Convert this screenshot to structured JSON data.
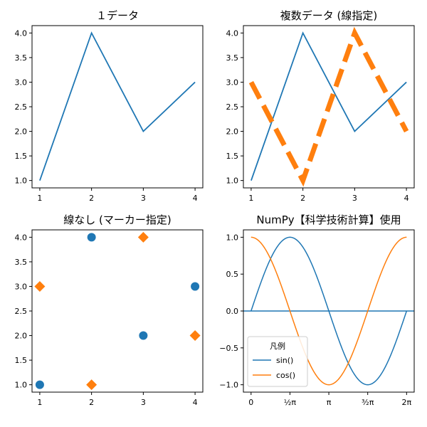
{
  "chart_data": [
    {
      "type": "line",
      "title": "１データ",
      "xticks": [
        "1",
        "2",
        "3",
        "4"
      ],
      "yticks": [
        "1.0",
        "1.5",
        "2.0",
        "2.5",
        "3.0",
        "3.5",
        "4.0"
      ],
      "xlim": [
        0.85,
        4.15
      ],
      "ylim": [
        0.85,
        4.15
      ],
      "series": [
        {
          "x": [
            1,
            2,
            3,
            4
          ],
          "y": [
            1,
            4,
            2,
            3
          ],
          "color": "#1f77b4",
          "style": "solid"
        }
      ]
    },
    {
      "type": "line",
      "title": "複数データ (線指定)",
      "xticks": [
        "1",
        "2",
        "3",
        "4"
      ],
      "yticks": [
        "1.0",
        "1.5",
        "2.0",
        "2.5",
        "3.0",
        "3.5",
        "4.0"
      ],
      "xlim": [
        0.85,
        4.15
      ],
      "ylim": [
        0.85,
        4.15
      ],
      "series": [
        {
          "x": [
            1,
            2,
            3,
            4
          ],
          "y": [
            1,
            4,
            2,
            3
          ],
          "color": "#1f77b4",
          "style": "solid"
        },
        {
          "x": [
            1,
            2,
            3,
            4
          ],
          "y": [
            3,
            1,
            4,
            2
          ],
          "color": "#ff7f0e",
          "style": "dashed-thick"
        }
      ]
    },
    {
      "type": "scatter",
      "title": "線なし (マーカー指定)",
      "xticks": [
        "1",
        "2",
        "3",
        "4"
      ],
      "yticks": [
        "1.0",
        "1.5",
        "2.0",
        "2.5",
        "3.0",
        "3.5",
        "4.0"
      ],
      "xlim": [
        0.85,
        4.15
      ],
      "ylim": [
        0.85,
        4.15
      ],
      "series": [
        {
          "x": [
            1,
            2,
            3,
            4
          ],
          "y": [
            1,
            4,
            2,
            3
          ],
          "color": "#1f77b4",
          "marker": "circle"
        },
        {
          "x": [
            1,
            2,
            3,
            4
          ],
          "y": [
            3,
            1,
            4,
            2
          ],
          "color": "#ff7f0e",
          "marker": "diamond"
        }
      ]
    },
    {
      "type": "line",
      "title": "NumPy【科学技術計算】使用",
      "xticks": [
        "0",
        "½π",
        "π",
        "³⁄₂π",
        "2π"
      ],
      "xtick_values": [
        0,
        1.5708,
        3.1416,
        4.7124,
        6.2832
      ],
      "yticks": [
        "−1.0",
        "−0.5",
        "0.0",
        "0.5",
        "1.0"
      ],
      "xlim": [
        -0.31,
        6.59
      ],
      "ylim": [
        -1.1,
        1.1
      ],
      "x_domain": [
        0,
        6.2832
      ],
      "horizontal_line": 0,
      "legend": {
        "title": "凡例",
        "position": "lower-left",
        "entries": [
          "sin()",
          "cos()"
        ]
      },
      "series": [
        {
          "name": "sin()",
          "function": "sin",
          "color": "#1f77b4"
        },
        {
          "name": "cos()",
          "function": "cos",
          "color": "#ff7f0e"
        }
      ]
    }
  ]
}
